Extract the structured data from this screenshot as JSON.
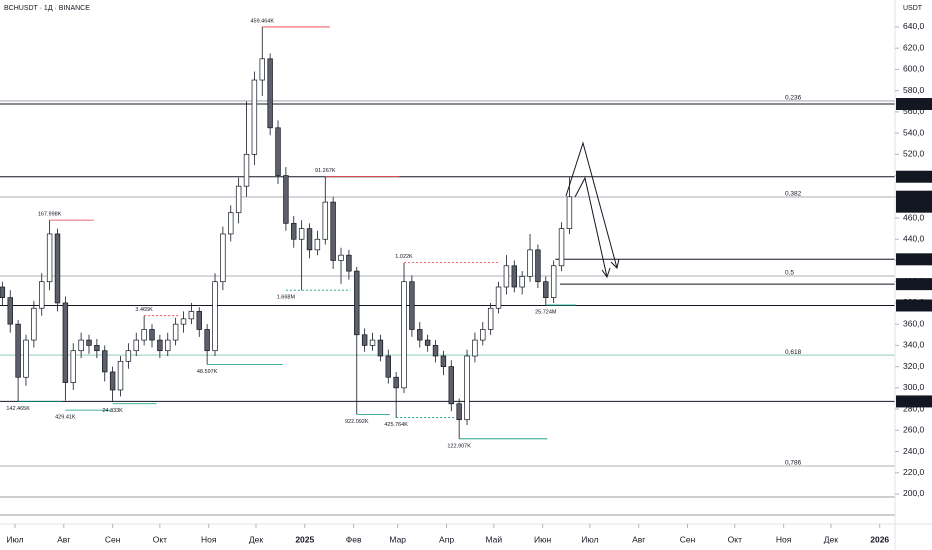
{
  "chart_data": {
    "type": "candlestick",
    "title": "BCHUSDT · 1Д · BINANCE",
    "y_unit": "USDT",
    "xlim": [
      -9.5,
      558.7
    ],
    "ylim": [
      175.5,
      665.4
    ],
    "xticks": [
      {
        "value": 0,
        "label": "Июл"
      },
      {
        "value": 31,
        "label": "Авг"
      },
      {
        "value": 62,
        "label": "Сен"
      },
      {
        "value": 92,
        "label": "Окт"
      },
      {
        "value": 123,
        "label": "Ноя"
      },
      {
        "value": 153,
        "label": "Дек"
      },
      {
        "value": 184,
        "label": "2025"
      },
      {
        "value": 215,
        "label": "Фев"
      },
      {
        "value": 243,
        "label": "Мар"
      },
      {
        "value": 274,
        "label": "Апр"
      },
      {
        "value": 304,
        "label": "Май"
      },
      {
        "value": 335,
        "label": "Июн"
      },
      {
        "value": 365,
        "label": "Июл"
      },
      {
        "value": 396,
        "label": "Авг"
      },
      {
        "value": 427,
        "label": "Сен"
      },
      {
        "value": 457,
        "label": "Окт"
      },
      {
        "value": 488,
        "label": "Ноя"
      },
      {
        "value": 518,
        "label": "Дек"
      },
      {
        "value": 549,
        "label": "2026"
      }
    ],
    "yticks": [
      {
        "value": 200,
        "label": "200,0"
      },
      {
        "value": 220,
        "label": "220,0"
      },
      {
        "value": 240,
        "label": "240,0"
      },
      {
        "value": 260,
        "label": "260,0"
      },
      {
        "value": 280,
        "label": "280,0"
      },
      {
        "value": 300,
        "label": "300,0"
      },
      {
        "value": 320,
        "label": "320,0"
      },
      {
        "value": 340,
        "label": "340,0"
      },
      {
        "value": 360,
        "label": "360,0"
      },
      {
        "value": 380,
        "label": "380,0"
      },
      {
        "value": 400,
        "label": "400,0"
      },
      {
        "value": 420,
        "label": "420,0"
      },
      {
        "value": 440,
        "label": "440,0"
      },
      {
        "value": 460,
        "label": "460,0"
      },
      {
        "value": 480,
        "label": "480,0"
      },
      {
        "value": 500,
        "label": "500,0"
      },
      {
        "value": 520,
        "label": "520,0"
      },
      {
        "value": 540,
        "label": "540,0"
      },
      {
        "value": 560,
        "label": "560,0"
      },
      {
        "value": 580,
        "label": "580,0"
      },
      {
        "value": 600,
        "label": "600,0"
      },
      {
        "value": 620,
        "label": "620,0"
      },
      {
        "value": 640,
        "label": "640,0"
      }
    ],
    "grid": false,
    "up_color": "#ffffff",
    "down_color": "#5d606b",
    "x": [
      -8,
      -3,
      2,
      7,
      12,
      17,
      22,
      27,
      32,
      37,
      42,
      47,
      52,
      57,
      62,
      67,
      72,
      77,
      82,
      87,
      92,
      97,
      102,
      107,
      112,
      117,
      122,
      127,
      132,
      137,
      142,
      147,
      152,
      157,
      162,
      167,
      172,
      177,
      182,
      187,
      192,
      197,
      202,
      207,
      212,
      217,
      222,
      227,
      232,
      237,
      242,
      247,
      252,
      257,
      262,
      267,
      272,
      277,
      282,
      287,
      292,
      297,
      302,
      307,
      312,
      317,
      322,
      327,
      332,
      337,
      342,
      347,
      352
    ],
    "ohlc": [
      [
        395,
        400,
        378,
        385
      ],
      [
        385,
        392,
        352,
        360
      ],
      [
        360,
        364,
        287,
        310
      ],
      [
        310,
        350,
        302,
        345
      ],
      [
        345,
        382,
        338,
        375
      ],
      [
        375,
        408,
        368,
        400
      ],
      [
        400,
        458,
        392,
        445
      ],
      [
        445,
        450,
        372,
        380
      ],
      [
        380,
        386,
        288,
        305
      ],
      [
        305,
        342,
        298,
        335
      ],
      [
        335,
        352,
        328,
        345
      ],
      [
        345,
        350,
        332,
        340
      ],
      [
        340,
        346,
        328,
        335
      ],
      [
        335,
        340,
        306,
        315
      ],
      [
        315,
        320,
        287,
        298
      ],
      [
        298,
        330,
        292,
        325
      ],
      [
        325,
        342,
        318,
        335
      ],
      [
        335,
        352,
        330,
        345
      ],
      [
        345,
        368,
        340,
        355
      ],
      [
        355,
        360,
        338,
        345
      ],
      [
        345,
        350,
        328,
        335
      ],
      [
        335,
        352,
        330,
        345
      ],
      [
        345,
        366,
        340,
        360
      ],
      [
        360,
        372,
        352,
        365
      ],
      [
        365,
        380,
        360,
        372
      ],
      [
        372,
        376,
        348,
        355
      ],
      [
        355,
        360,
        322,
        335
      ],
      [
        335,
        408,
        330,
        400
      ],
      [
        400,
        452,
        392,
        445
      ],
      [
        445,
        472,
        438,
        465
      ],
      [
        465,
        498,
        455,
        490
      ],
      [
        490,
        570,
        480,
        520
      ],
      [
        520,
        598,
        510,
        590
      ],
      [
        590,
        640,
        575,
        610
      ],
      [
        610,
        615,
        538,
        545
      ],
      [
        545,
        552,
        492,
        500
      ],
      [
        500,
        508,
        448,
        455
      ],
      [
        455,
        462,
        432,
        440
      ],
      [
        440,
        458,
        392,
        450
      ],
      [
        450,
        455,
        422,
        430
      ],
      [
        430,
        448,
        425,
        440
      ],
      [
        440,
        499,
        435,
        475
      ],
      [
        475,
        480,
        412,
        420
      ],
      [
        420,
        432,
        398,
        425
      ],
      [
        425,
        430,
        402,
        410
      ],
      [
        410,
        414,
        275,
        350
      ],
      [
        350,
        356,
        334,
        340
      ],
      [
        340,
        352,
        335,
        345
      ],
      [
        345,
        350,
        325,
        330
      ],
      [
        330,
        336,
        304,
        310
      ],
      [
        310,
        315,
        272,
        300
      ],
      [
        300,
        418,
        295,
        400
      ],
      [
        400,
        406,
        348,
        355
      ],
      [
        355,
        362,
        338,
        345
      ],
      [
        345,
        350,
        334,
        340
      ],
      [
        340,
        345,
        324,
        330
      ],
      [
        330,
        335,
        312,
        320
      ],
      [
        320,
        326,
        278,
        285
      ],
      [
        285,
        290,
        252,
        270
      ],
      [
        270,
        336,
        265,
        330
      ],
      [
        330,
        352,
        324,
        345
      ],
      [
        345,
        362,
        340,
        355
      ],
      [
        355,
        380,
        350,
        375
      ],
      [
        375,
        400,
        370,
        395
      ],
      [
        395,
        425,
        388,
        415
      ],
      [
        415,
        420,
        390,
        395
      ],
      [
        395,
        410,
        388,
        405
      ],
      [
        405,
        445,
        400,
        430
      ],
      [
        430,
        435,
        394,
        400
      ],
      [
        400,
        405,
        378,
        385
      ],
      [
        385,
        420,
        380,
        415
      ],
      [
        415,
        456,
        410,
        450
      ],
      [
        450,
        499,
        445,
        480
      ]
    ],
    "levels": [
      {
        "value": 567.4,
        "label": "567,4"
      },
      {
        "value": 498.9,
        "label": "498,9"
      },
      {
        "value": 421.1,
        "label": "421,1",
        "start": 343
      },
      {
        "value": 397.7,
        "label": "397,7",
        "start": 346
      },
      {
        "value": 377.6,
        "label": "377,6"
      },
      {
        "value": 287.2,
        "label": "287,2"
      }
    ],
    "last_price": {
      "value": 480.1,
      "label": "480,1",
      "countdown": "03:51:14"
    },
    "fib_levels": [
      {
        "value": 570.3,
        "label": "0,236",
        "color": "#9598a1"
      },
      {
        "value": 479.8,
        "label": "0,382",
        "color": "#9598a1"
      },
      {
        "value": 405.4,
        "label": "0,5",
        "color": "#9598a1"
      },
      {
        "value": 330.9,
        "label": "0,618",
        "color": "#7fc6a8"
      },
      {
        "value": 226.4,
        "label": "0,786",
        "color": "#9598a1"
      }
    ],
    "extra_lines": [
      197.2,
      180.2
    ],
    "annotations": [
      {
        "label": "459.464K",
        "x": 157,
        "y": 640,
        "x_end": 200,
        "color": "#f23645",
        "pos": "above"
      },
      {
        "label": "167.998K",
        "x": 22,
        "y": 458,
        "x_end": 50,
        "color": "#f23645",
        "pos": "above"
      },
      {
        "label": "3.465K",
        "x": 82,
        "y": 368,
        "x_end": 105,
        "color": "#f23645",
        "pos": "above",
        "dashed": true
      },
      {
        "label": "91.267K",
        "x": 197,
        "y": 499,
        "x_end": 244,
        "color": "#f23645",
        "pos": "above"
      },
      {
        "label": "1.022K",
        "x": 247,
        "y": 418,
        "x_end": 308,
        "color": "#f23645",
        "pos": "above",
        "dashed": true
      },
      {
        "label": "142.465K",
        "x": 2,
        "y": 287,
        "x_end": 30,
        "color": "#089981",
        "pos": "below"
      },
      {
        "label": "429.41K",
        "x": 32,
        "y": 279,
        "x_end": 62,
        "color": "#089981",
        "pos": "below"
      },
      {
        "label": "24.333K",
        "x": 62,
        "y": 285,
        "x_end": 90,
        "color": "#089981",
        "pos": "below"
      },
      {
        "label": "48.597K",
        "x": 122,
        "y": 322,
        "x_end": 170,
        "color": "#089981",
        "pos": "below"
      },
      {
        "label": "1.668M",
        "x": 172,
        "y": 392,
        "x_end": 213,
        "color": "#089981",
        "pos": "below",
        "dashed": true
      },
      {
        "label": "922.092K",
        "x": 217,
        "y": 275,
        "x_end": 238,
        "color": "#089981",
        "pos": "below"
      },
      {
        "label": "425.764K",
        "x": 242,
        "y": 272,
        "x_end": 280,
        "color": "#089981",
        "pos": "below",
        "dashed": true
      },
      {
        "label": "122.907K",
        "x": 282,
        "y": 252,
        "x_end": 338,
        "color": "#089981",
        "pos": "below"
      },
      {
        "label": "25.724M",
        "x": 337,
        "y": 378,
        "x_end": 356,
        "color": "#089981",
        "pos": "below"
      }
    ]
  }
}
